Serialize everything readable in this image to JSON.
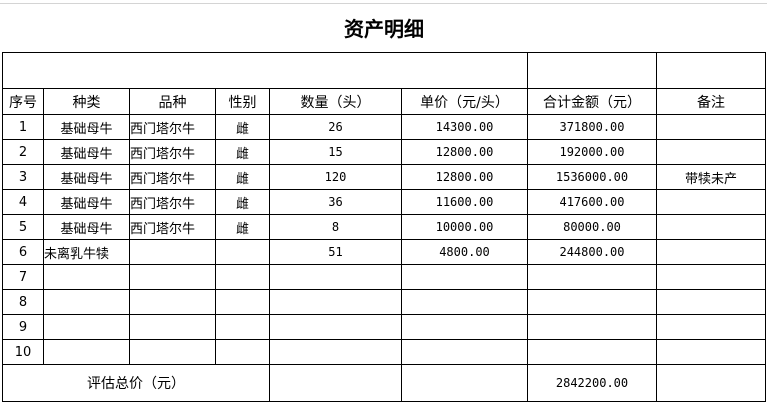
{
  "title": "资产明细",
  "headers": [
    "序号",
    "种类",
    "品种",
    "性别",
    "数量（头）",
    "单价（元/头）",
    "合计金额（元）",
    "备注"
  ],
  "rows": [
    {
      "no": "1",
      "type": "基础母牛",
      "breed": "西门塔尔牛",
      "sex": "雌",
      "qty": "26",
      "price": "14300.00",
      "amount": "371800.00",
      "note": ""
    },
    {
      "no": "2",
      "type": "基础母牛",
      "breed": "西门塔尔牛",
      "sex": "雌",
      "qty": "15",
      "price": "12800.00",
      "amount": "192000.00",
      "note": ""
    },
    {
      "no": "3",
      "type": "基础母牛",
      "breed": "西门塔尔牛",
      "sex": "雌",
      "qty": "120",
      "price": "12800.00",
      "amount": "1536000.00",
      "note": "带犊未产"
    },
    {
      "no": "4",
      "type": "基础母牛",
      "breed": "西门塔尔牛",
      "sex": "雌",
      "qty": "36",
      "price": "11600.00",
      "amount": "417600.00",
      "note": ""
    },
    {
      "no": "5",
      "type": "基础母牛",
      "breed": "西门塔尔牛",
      "sex": "雌",
      "qty": "8",
      "price": "10000.00",
      "amount": "80000.00",
      "note": ""
    },
    {
      "no": "6",
      "type": "未离乳牛犊",
      "breed": "",
      "sex": "",
      "qty": "51",
      "price": "4800.00",
      "amount": "244800.00",
      "note": ""
    },
    {
      "no": "7",
      "type": "",
      "breed": "",
      "sex": "",
      "qty": "",
      "price": "",
      "amount": "",
      "note": ""
    },
    {
      "no": "8",
      "type": "",
      "breed": "",
      "sex": "",
      "qty": "",
      "price": "",
      "amount": "",
      "note": ""
    },
    {
      "no": "9",
      "type": "",
      "breed": "",
      "sex": "",
      "qty": "",
      "price": "",
      "amount": "",
      "note": ""
    },
    {
      "no": "10",
      "type": "",
      "breed": "",
      "sex": "",
      "qty": "",
      "price": "",
      "amount": "",
      "note": ""
    }
  ],
  "total": {
    "label": "评估总价（元）",
    "amount": "2842200.00"
  }
}
